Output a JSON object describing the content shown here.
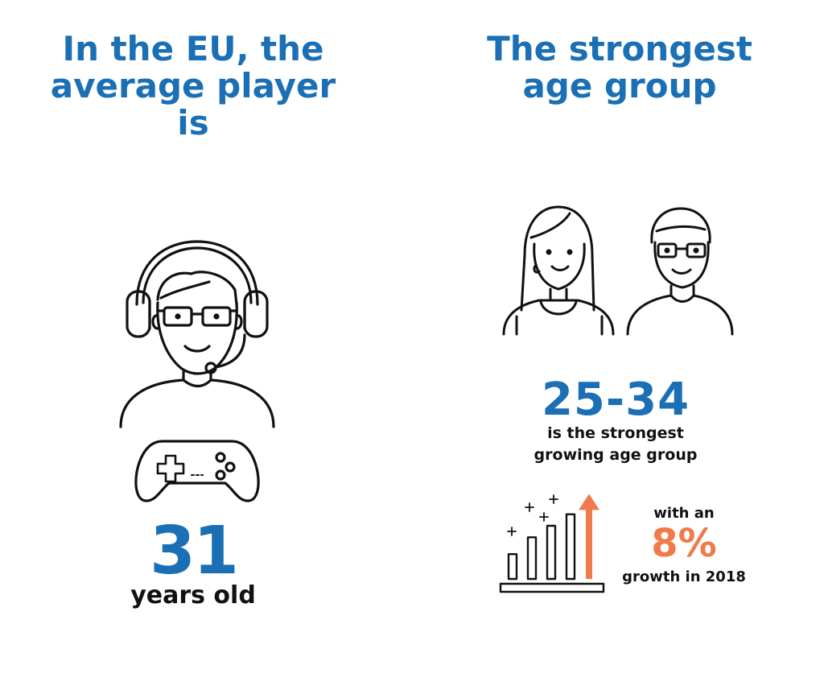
{
  "colors": {
    "heading": "#1a6fb5",
    "stat_blue": "#1a6fb5",
    "stat_orange": "#f07a4a",
    "ink": "#111111"
  },
  "left": {
    "heading_lines": [
      "In the EU, the",
      "average player",
      "is"
    ],
    "stat_value": "31",
    "stat_label": "years old",
    "icons": [
      "gamer-with-headset-icon",
      "game-controller-icon"
    ]
  },
  "right": {
    "heading_lines": [
      "The strongest",
      "age group"
    ],
    "group_value": "25-34",
    "group_desc_lines": [
      "is the strongest",
      "growing age group"
    ],
    "growth_prefix": "with an",
    "growth_value": "8%",
    "growth_suffix": "growth in 2018",
    "icons": [
      "woman-icon",
      "man-with-glasses-icon",
      "growth-bar-chart-icon"
    ],
    "growth_chart": {
      "type": "bar",
      "values": [
        0.28,
        0.47,
        0.6,
        0.73
      ],
      "arrow_level": 0.96
    }
  }
}
